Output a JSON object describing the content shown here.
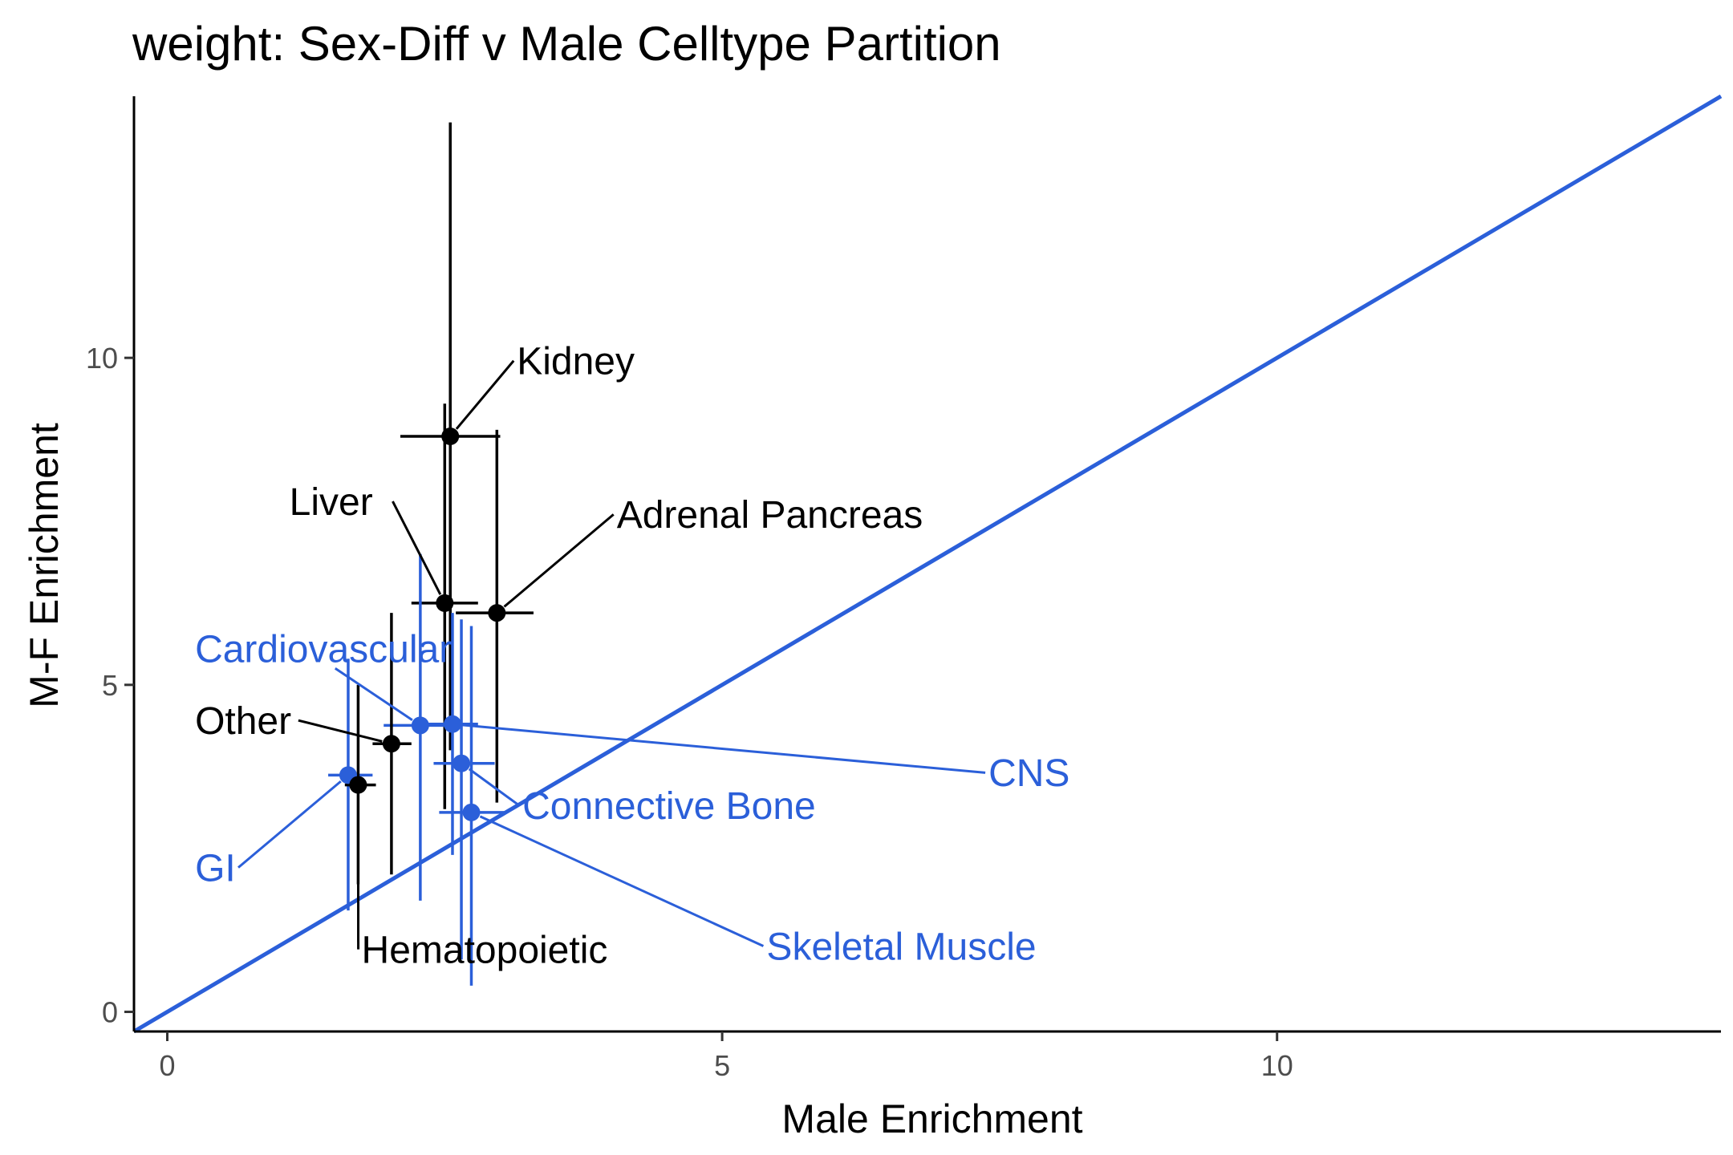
{
  "chart_data": {
    "type": "scatter",
    "title": "weight: Sex-Diff v Male Celltype Partition",
    "xlabel": "Male Enrichment",
    "ylabel": "M-F Enrichment",
    "xlim": [
      -0.3,
      14.0
    ],
    "ylim": [
      -0.3,
      14.0
    ],
    "x_ticks": [
      0,
      5,
      10
    ],
    "y_ticks": [
      0,
      5,
      10
    ],
    "grid": false,
    "legend": "none",
    "reference_line": {
      "slope": 1,
      "intercept": 0,
      "color": "#2b5fd9"
    },
    "colors": {
      "black": "#000000",
      "blue": "#2b5fd9"
    },
    "points": [
      {
        "label": "Kidney",
        "color": "black",
        "x": 2.55,
        "y": 8.8,
        "x_err": [
          2.1,
          3.0
        ],
        "y_err": [
          4.0,
          13.6
        ],
        "label_pos": [
          3.15,
          9.75
        ]
      },
      {
        "label": "Liver",
        "color": "black",
        "x": 2.5,
        "y": 6.25,
        "x_err": [
          2.2,
          2.8
        ],
        "y_err": [
          3.1,
          9.3
        ],
        "label_pos": [
          1.1,
          7.6
        ]
      },
      {
        "label": "Adrenal Pancreas",
        "color": "black",
        "x": 2.97,
        "y": 6.1,
        "x_err": [
          2.6,
          3.3
        ],
        "y_err": [
          3.2,
          8.9
        ],
        "label_pos": [
          4.05,
          7.4
        ]
      },
      {
        "label": "Cardiovascular",
        "color": "blue",
        "x": 2.28,
        "y": 4.38,
        "x_err": [
          1.95,
          2.55
        ],
        "y_err": [
          1.7,
          7.0
        ],
        "label_pos": [
          0.25,
          5.35
        ]
      },
      {
        "label": "CNS",
        "color": "blue",
        "x": 2.57,
        "y": 4.4,
        "x_err": [
          2.35,
          2.8
        ],
        "y_err": [
          2.4,
          6.1
        ],
        "label_pos": [
          7.4,
          3.45
        ]
      },
      {
        "label": "Other",
        "color": "black",
        "x": 2.02,
        "y": 4.1,
        "x_err": [
          1.85,
          2.2
        ],
        "y_err": [
          2.1,
          6.1
        ],
        "label_pos": [
          0.25,
          4.25
        ]
      },
      {
        "label": "Connective Bone",
        "color": "blue",
        "x": 2.65,
        "y": 3.8,
        "x_err": [
          2.4,
          2.95
        ],
        "y_err": [
          0.8,
          6.0
        ],
        "label_pos": [
          3.2,
          2.95
        ]
      },
      {
        "label": "GI",
        "color": "blue",
        "x": 1.63,
        "y": 3.62,
        "x_err": [
          1.45,
          1.85
        ],
        "y_err": [
          1.55,
          5.4
        ],
        "label_pos": [
          0.25,
          2.0
        ]
      },
      {
        "label": "Hematopoietic",
        "color": "black",
        "x": 1.72,
        "y": 3.47,
        "x_err": [
          1.6,
          1.88
        ],
        "y_err": [
          1.95,
          5.0
        ],
        "label_pos": [
          1.75,
          0.75
        ]
      },
      {
        "label": "Skeletal Muscle",
        "color": "blue",
        "x": 2.74,
        "y": 3.05,
        "x_err": [
          2.45,
          3.05
        ],
        "y_err": [
          0.4,
          5.9
        ],
        "label_pos": [
          5.4,
          0.8
        ]
      }
    ]
  }
}
